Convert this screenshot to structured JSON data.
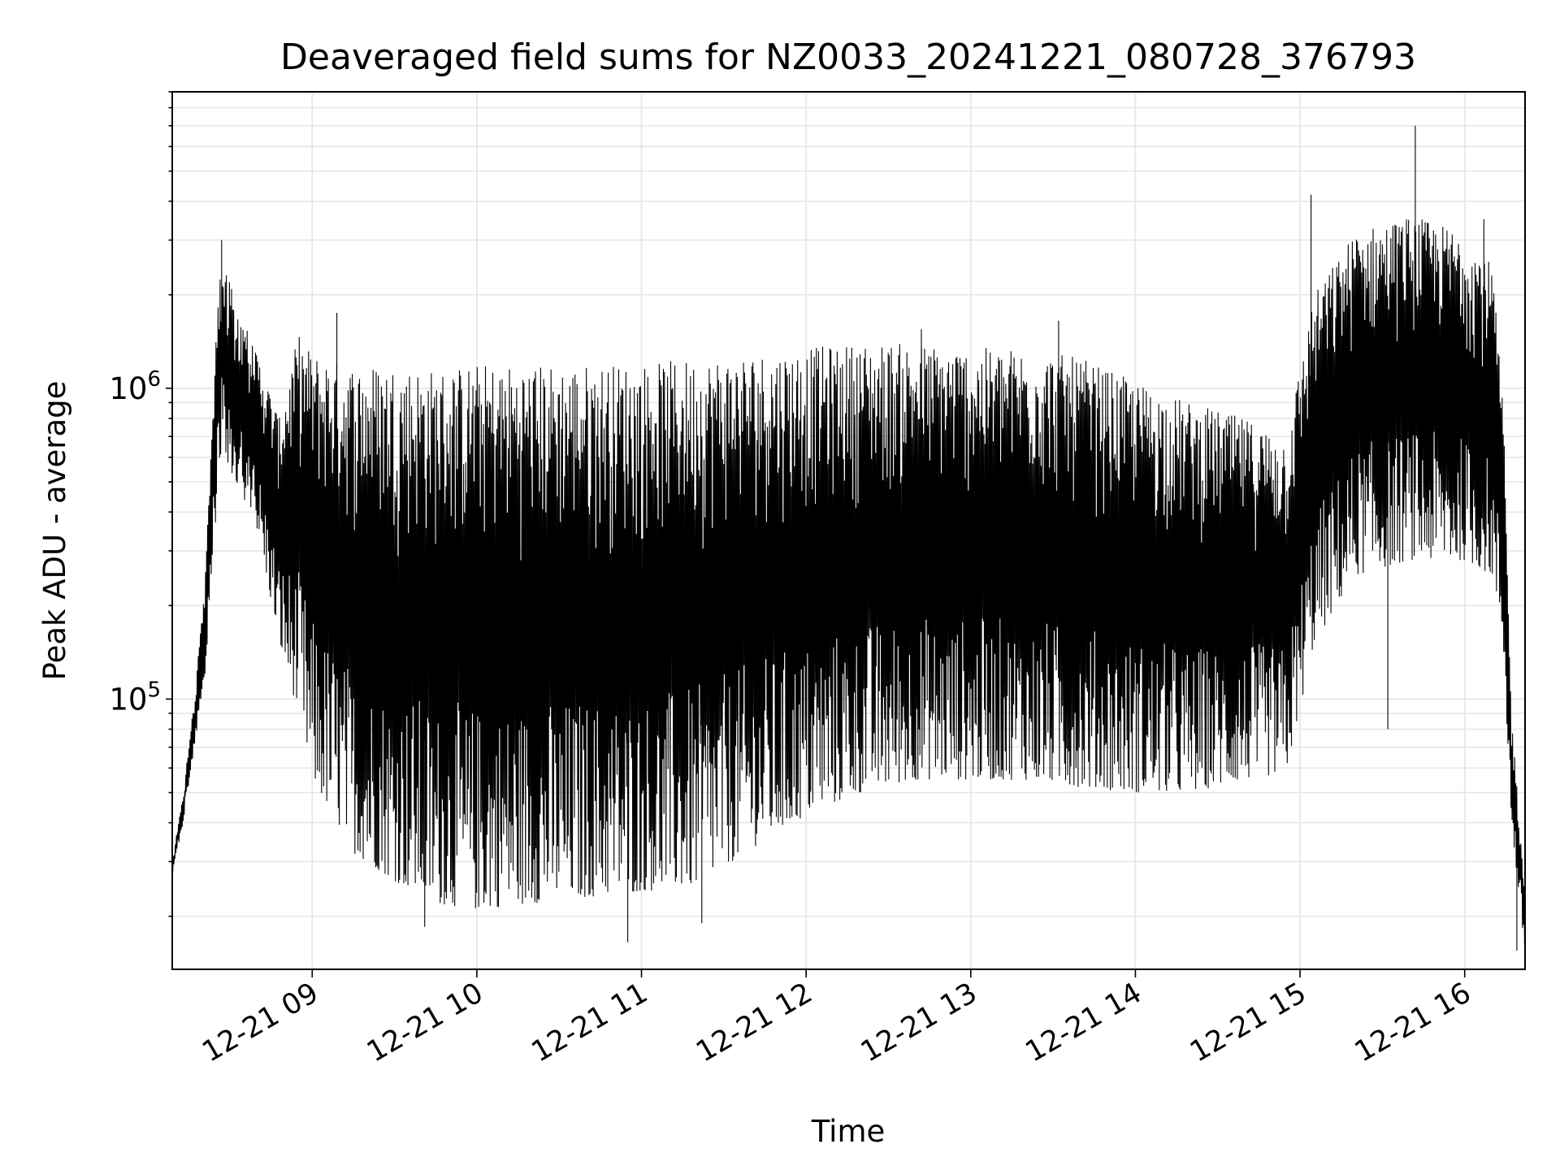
{
  "chart_data": {
    "type": "line",
    "title": "Deaveraged field sums for NZ0033_20241221_080728_376793",
    "xlabel": "Time",
    "ylabel": "Peak ADU - average",
    "y_scale": "log",
    "ylim": [
      13500,
      9000000
    ],
    "xlim": [
      "2024-12-21 08:09",
      "2024-12-21 16:22"
    ],
    "grid": true,
    "x_ticks": [
      {
        "value": "2024-12-21 09:00",
        "label": "12-21 09"
      },
      {
        "value": "2024-12-21 10:00",
        "label": "12-21 10"
      },
      {
        "value": "2024-12-21 11:00",
        "label": "12-21 11"
      },
      {
        "value": "2024-12-21 12:00",
        "label": "12-21 12"
      },
      {
        "value": "2024-12-21 13:00",
        "label": "12-21 13"
      },
      {
        "value": "2024-12-21 14:00",
        "label": "12-21 14"
      },
      {
        "value": "2024-12-21 15:00",
        "label": "12-21 15"
      },
      {
        "value": "2024-12-21 16:00",
        "label": "12-21 16"
      }
    ],
    "y_ticks": [
      {
        "value": 100000,
        "base": "10",
        "exponent": "5"
      },
      {
        "value": 1000000,
        "base": "10",
        "exponent": "6"
      }
    ],
    "series": [
      {
        "color": "#000000",
        "envelope": [
          {
            "x": "2024-12-21 08:09",
            "low": 27000,
            "high": 30000
          },
          {
            "x": "2024-12-21 08:13",
            "low": 40000,
            "high": 50000
          },
          {
            "x": "2024-12-21 08:17",
            "low": 70000,
            "high": 100000
          },
          {
            "x": "2024-12-21 08:21",
            "low": 120000,
            "high": 250000
          },
          {
            "x": "2024-12-21 08:25",
            "low": 400000,
            "high": 1500000
          },
          {
            "x": "2024-12-21 08:27",
            "low": 600000,
            "high": 3000000
          },
          {
            "x": "2024-12-21 08:32",
            "low": 500000,
            "high": 1900000
          },
          {
            "x": "2024-12-21 08:40",
            "low": 350000,
            "high": 1300000
          },
          {
            "x": "2024-12-21 08:48",
            "low": 150000,
            "high": 800000
          },
          {
            "x": "2024-12-21 08:55",
            "low": 90000,
            "high": 1500000
          },
          {
            "x": "2024-12-21 09:00",
            "low": 55000,
            "high": 1300000
          },
          {
            "x": "2024-12-21 09:15",
            "low": 32000,
            "high": 1200000
          },
          {
            "x": "2024-12-21 09:30",
            "low": 26000,
            "high": 1200000
          },
          {
            "x": "2024-12-21 09:45",
            "low": 22000,
            "high": 1150000
          },
          {
            "x": "2024-12-21 10:00",
            "low": 21000,
            "high": 1200000
          },
          {
            "x": "2024-12-21 10:20",
            "low": 22000,
            "high": 1200000
          },
          {
            "x": "2024-12-21 10:40",
            "low": 23000,
            "high": 1200000
          },
          {
            "x": "2024-12-21 11:00",
            "low": 24000,
            "high": 1200000
          },
          {
            "x": "2024-12-21 11:20",
            "low": 25000,
            "high": 1250000
          },
          {
            "x": "2024-12-21 11:40",
            "low": 33000,
            "high": 1300000
          },
          {
            "x": "2024-12-21 12:00",
            "low": 42000,
            "high": 1350000
          },
          {
            "x": "2024-12-21 12:20",
            "low": 50000,
            "high": 1400000
          },
          {
            "x": "2024-12-21 12:40",
            "low": 55000,
            "high": 1400000
          },
          {
            "x": "2024-12-21 13:00",
            "low": 55000,
            "high": 1350000
          },
          {
            "x": "2024-12-21 13:20",
            "low": 55000,
            "high": 1350000
          },
          {
            "x": "2024-12-21 13:40",
            "low": 52000,
            "high": 1250000
          },
          {
            "x": "2024-12-21 14:00",
            "low": 50000,
            "high": 1050000
          },
          {
            "x": "2024-12-21 14:20",
            "low": 50000,
            "high": 900000
          },
          {
            "x": "2024-12-21 14:40",
            "low": 55000,
            "high": 800000
          },
          {
            "x": "2024-12-21 14:55",
            "low": 58000,
            "high": 700000
          },
          {
            "x": "2024-12-21 15:05",
            "low": 150000,
            "high": 2000000
          },
          {
            "x": "2024-12-21 15:20",
            "low": 250000,
            "high": 3200000
          },
          {
            "x": "2024-12-21 15:40",
            "low": 280000,
            "high": 3600000
          },
          {
            "x": "2024-12-21 16:00",
            "low": 280000,
            "high": 3200000
          },
          {
            "x": "2024-12-21 16:10",
            "low": 250000,
            "high": 2500000
          },
          {
            "x": "2024-12-21 16:14",
            "low": 150000,
            "high": 900000
          },
          {
            "x": "2024-12-21 16:17",
            "low": 40000,
            "high": 90000
          },
          {
            "x": "2024-12-21 16:22",
            "low": 15000,
            "high": 25000
          }
        ],
        "spikes_high": [
          {
            "x": "2024-12-21 08:27",
            "y": 3000000
          },
          {
            "x": "2024-12-21 09:09",
            "y": 1750000
          },
          {
            "x": "2024-12-21 12:42",
            "y": 1550000
          },
          {
            "x": "2024-12-21 13:32",
            "y": 1650000
          },
          {
            "x": "2024-12-21 15:04",
            "y": 4200000
          },
          {
            "x": "2024-12-21 15:42",
            "y": 7000000
          },
          {
            "x": "2024-12-21 16:07",
            "y": 3500000
          }
        ],
        "spikes_low": [
          {
            "x": "2024-12-21 09:41",
            "y": 18500
          },
          {
            "x": "2024-12-21 10:55",
            "y": 16500
          },
          {
            "x": "2024-12-21 11:22",
            "y": 19000
          },
          {
            "x": "2024-12-21 15:32",
            "y": 80000
          },
          {
            "x": "2024-12-21 16:19",
            "y": 15500
          }
        ]
      }
    ]
  }
}
